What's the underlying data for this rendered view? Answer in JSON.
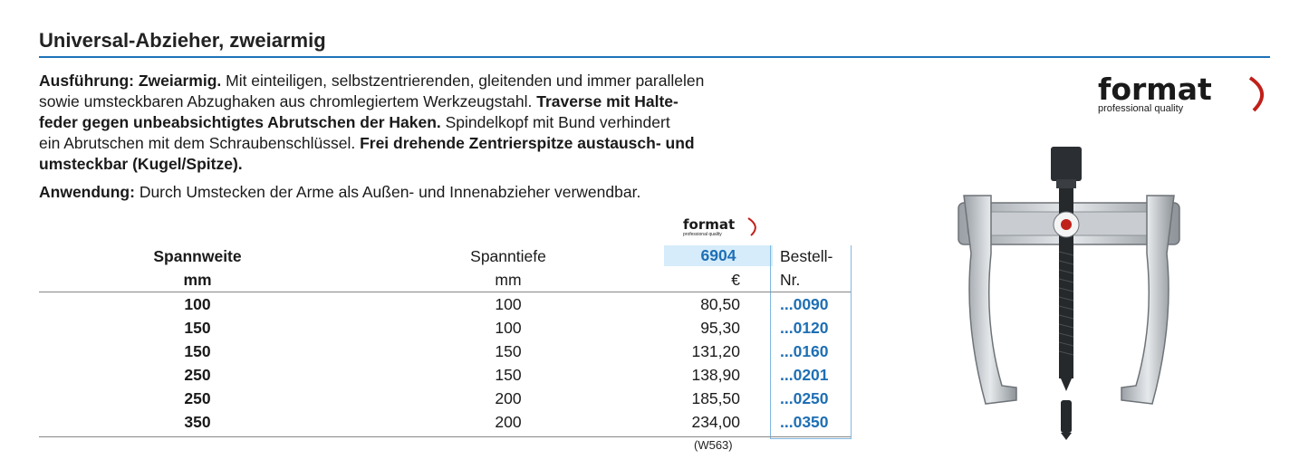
{
  "title": "Universal-Abzieher, zweiarmig",
  "description": {
    "line1_bold": "Ausführung: Zweiarmig.",
    "line1_rest": " Mit einteiligen, selbstzentrierenden, gleitenden und immer parallelen",
    "line2_normal": "sowie umsteckbaren Abzughaken aus chromlegiertem Werkzeugstahl. ",
    "line2_bold": "Traverse mit Halte-",
    "line3_bold": "feder gegen unbeabsichtigtes Abrutschen der Haken.",
    "line3_rest": " Spindelkopf mit Bund verhindert",
    "line4_normal": "ein Abrutschen mit dem Schraubenschlüssel. ",
    "line4_bold": "Frei drehende Zentrierspitze austausch- und",
    "line5_bold": "umsteckbar (Kugel/Spitze)."
  },
  "application": {
    "label": "Anwendung:",
    "text": " Durch Umstecken der Arme als Außen- und Innenabzieher verwendbar."
  },
  "brand": {
    "name": "format",
    "tagline": "professional quality",
    "accent_color": "#c0201a"
  },
  "table": {
    "headers": {
      "col1_line1": "Spannweite",
      "col1_line2": "mm",
      "col2_line1": "Spanntiefe",
      "col2_line2": "mm",
      "col3_line1": "6904",
      "col3_line2": "€",
      "col4_line1": "Bestell-",
      "col4_line2": "Nr."
    },
    "rows": [
      {
        "spannweite": "100",
        "spanntiefe": "100",
        "preis": "80,50",
        "bestellnr": "...0090"
      },
      {
        "spannweite": "150",
        "spanntiefe": "100",
        "preis": "95,30",
        "bestellnr": "...0120"
      },
      {
        "spannweite": "150",
        "spanntiefe": "150",
        "preis": "131,20",
        "bestellnr": "...0160"
      },
      {
        "spannweite": "250",
        "spanntiefe": "150",
        "preis": "138,90",
        "bestellnr": "...0201"
      },
      {
        "spannweite": "250",
        "spanntiefe": "200",
        "preis": "185,50",
        "bestellnr": "...0250"
      },
      {
        "spannweite": "350",
        "spanntiefe": "200",
        "preis": "234,00",
        "bestellnr": "...0350"
      }
    ],
    "footnote": "(W563)"
  },
  "colors": {
    "accent_blue": "#1e73b8",
    "header_fill": "#d6ecfa"
  },
  "product_image_icon": "two-arm-puller-icon"
}
